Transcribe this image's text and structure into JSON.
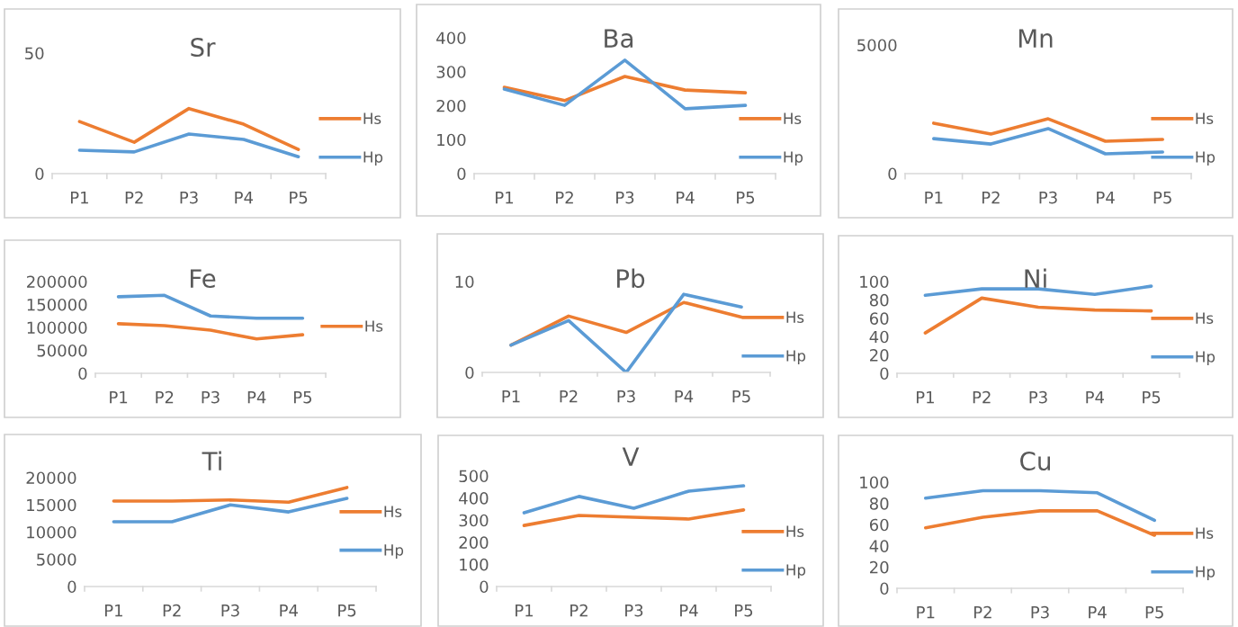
{
  "chart_data": [
    {
      "type": "line",
      "title": "Sr",
      "categories": [
        "P1",
        "P2",
        "P3",
        "P4",
        "P5"
      ],
      "ylim": [
        0,
        50
      ],
      "yticks": [
        0,
        50
      ],
      "legend": "bottom right",
      "grid": false,
      "series": [
        {
          "name": "Hs",
          "color": "#ed7d31",
          "values": [
            21.6,
            13,
            27,
            20.5,
            10
          ]
        },
        {
          "name": "Hp",
          "color": "#5b9bd5",
          "values": [
            9.7,
            9,
            16.4,
            14.2,
            7
          ]
        }
      ]
    },
    {
      "type": "line",
      "title": "Ba",
      "categories": [
        "P1",
        "P2",
        "P3",
        "P4",
        "P5"
      ],
      "ylim": [
        0,
        400
      ],
      "yticks": [
        0,
        100,
        200,
        300,
        400
      ],
      "legend": "bottom right",
      "grid": false,
      "series": [
        {
          "name": "Hs",
          "color": "#ed7d31",
          "values": [
            254,
            215,
            286,
            246,
            238
          ]
        },
        {
          "name": "Hp",
          "color": "#5b9bd5",
          "values": [
            249,
            201,
            334,
            191,
            201
          ]
        }
      ]
    },
    {
      "type": "line",
      "title": "Mn",
      "categories": [
        "P1",
        "P2",
        "P3",
        "P4",
        "P5"
      ],
      "ylim": [
        0,
        5000
      ],
      "yticks": [
        0,
        5000
      ],
      "legend": "bottom right",
      "grid": false,
      "series": [
        {
          "name": "Hs",
          "color": "#ed7d31",
          "values": [
            1960,
            1540,
            2130,
            1260,
            1330
          ]
        },
        {
          "name": "Hp",
          "color": "#5b9bd5",
          "values": [
            1360,
            1150,
            1750,
            770,
            840
          ]
        }
      ]
    },
    {
      "type": "line",
      "title": "Fe",
      "categories": [
        "P1",
        "P2",
        "P3",
        "P4",
        "P5"
      ],
      "ylim": [
        0,
        200000
      ],
      "yticks": [
        0,
        50000,
        100000,
        150000,
        200000
      ],
      "legend": "right",
      "grid": false,
      "series": [
        {
          "name": "Hs",
          "color": "#ed7d31",
          "values": [
            108000,
            104000,
            94000,
            75000,
            84000
          ]
        },
        {
          "color": "#5b9bd5",
          "values": [
            167000,
            170000,
            125000,
            120000,
            120000
          ]
        }
      ]
    },
    {
      "type": "line",
      "title": "Pb",
      "categories": [
        "P1",
        "P2",
        "P3",
        "P4",
        "P5"
      ],
      "ylim": [
        0,
        10
      ],
      "yticks": [
        0,
        10
      ],
      "legend": "bottom right",
      "grid": false,
      "series": [
        {
          "name": "Hs",
          "color": "#ed7d31",
          "values": [
            3,
            6.2,
            4.4,
            7.7,
            6.1
          ]
        },
        {
          "name": "Hp",
          "color": "#5b9bd5",
          "values": [
            3,
            5.7,
            0,
            8.6,
            7.2
          ]
        }
      ]
    },
    {
      "type": "line",
      "title": "Ni",
      "categories": [
        "P1",
        "P2",
        "P3",
        "P4",
        "P5"
      ],
      "ylim": [
        0,
        100
      ],
      "yticks": [
        0,
        20,
        40,
        60,
        80,
        100
      ],
      "legend": "bottom right",
      "grid": false,
      "series": [
        {
          "name": "Hs",
          "color": "#ed7d31",
          "values": [
            44,
            82,
            72,
            69,
            68
          ]
        },
        {
          "name": "Hp",
          "color": "#5b9bd5",
          "values": [
            85,
            92,
            92,
            86,
            95
          ]
        }
      ]
    },
    {
      "type": "line",
      "title": "Ti",
      "categories": [
        "P1",
        "P2",
        "P3",
        "P4",
        "P5"
      ],
      "ylim": [
        0,
        20000
      ],
      "yticks": [
        0,
        5000,
        10000,
        15000,
        20000
      ],
      "legend": "right",
      "grid": false,
      "series": [
        {
          "name": "Hs",
          "color": "#ed7d31",
          "values": [
            15700,
            15700,
            15900,
            15500,
            18200
          ]
        },
        {
          "name": "Hp",
          "color": "#5b9bd5",
          "values": [
            11900,
            11900,
            15000,
            13700,
            16200
          ]
        }
      ]
    },
    {
      "type": "line",
      "title": "V",
      "categories": [
        "P1",
        "P2",
        "P3",
        "P4",
        "P5"
      ],
      "ylim": [
        0,
        500
      ],
      "yticks": [
        0,
        100,
        200,
        300,
        400,
        500
      ],
      "legend": "bottom right",
      "grid": false,
      "series": [
        {
          "name": "Hs",
          "color": "#ed7d31",
          "values": [
            276,
            321,
            313,
            305,
            346
          ]
        },
        {
          "name": "Hp",
          "color": "#5b9bd5",
          "values": [
            333,
            407,
            354,
            431,
            455
          ]
        }
      ]
    },
    {
      "type": "line",
      "title": "Cu",
      "categories": [
        "P1",
        "P2",
        "P3",
        "P4",
        "P5"
      ],
      "ylim": [
        0,
        100
      ],
      "yticks": [
        0,
        20,
        40,
        60,
        80,
        100
      ],
      "legend": "bottom right",
      "grid": false,
      "series": [
        {
          "name": "Hs",
          "color": "#ed7d31",
          "values": [
            57,
            67,
            73,
            73,
            50
          ]
        },
        {
          "name": "Hp",
          "color": "#5b9bd5",
          "values": [
            85,
            92,
            92,
            90,
            64
          ]
        }
      ]
    }
  ]
}
